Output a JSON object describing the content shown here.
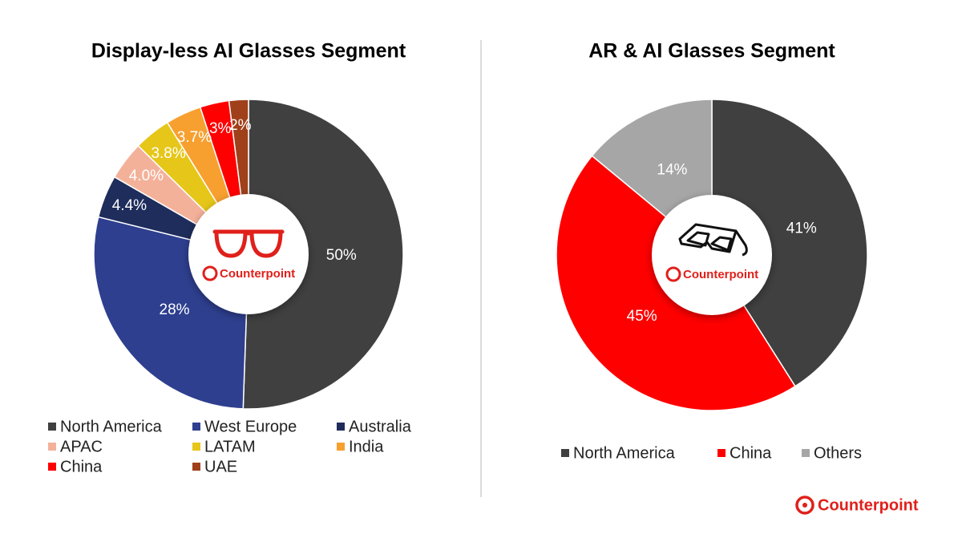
{
  "chart_data": [
    {
      "type": "pie",
      "title": "Display-less AI Glasses Segment",
      "categories": [
        "North America",
        "West Europe",
        "Australia",
        "APAC",
        "LATAM",
        "India",
        "China",
        "UAE"
      ],
      "values": [
        50,
        28,
        4.4,
        4.0,
        3.8,
        3.7,
        3,
        2
      ],
      "value_labels": [
        "50%",
        "28%",
        "4.4%",
        "4.0%",
        "3.8%",
        "3.7%",
        "3%",
        "2%"
      ],
      "colors": [
        "#404040",
        "#2e3f8f",
        "#1f2d5c",
        "#f4b19a",
        "#e6c619",
        "#f7a030",
        "#ff0000",
        "#a0401a"
      ]
    },
    {
      "type": "pie",
      "title": "AR & AI Glasses Segment",
      "categories": [
        "North America",
        "China",
        "Others"
      ],
      "values": [
        41,
        45,
        14
      ],
      "value_labels": [
        "41%",
        "45%",
        "14%"
      ],
      "colors": [
        "#404040",
        "#ff0000",
        "#a6a6a6"
      ]
    }
  ],
  "brand": "Counterpoint"
}
